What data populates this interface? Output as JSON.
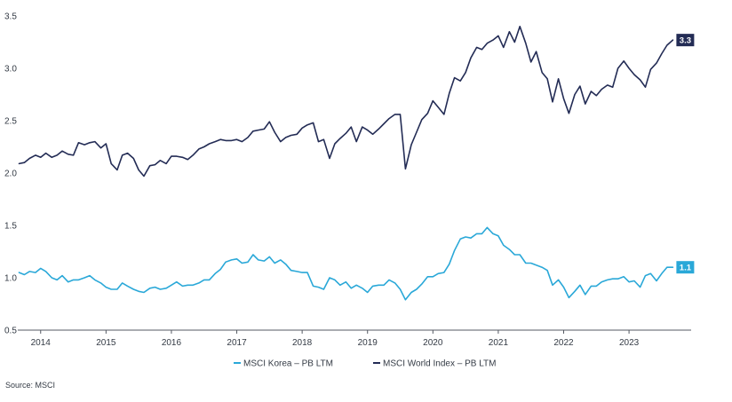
{
  "chart_data": {
    "type": "line",
    "title": "",
    "xlabel": "",
    "ylabel": "",
    "xlim": [
      2013.65,
      2023.95
    ],
    "ylim": [
      0.5,
      3.5
    ],
    "x_ticks": [
      2014,
      2015,
      2016,
      2017,
      2018,
      2019,
      2020,
      2021,
      2022,
      2023
    ],
    "x_tick_labels": [
      "2014",
      "2015",
      "2016",
      "2017",
      "2018",
      "2019",
      "2020",
      "2021",
      "2022",
      "2023"
    ],
    "y_ticks": [
      0.5,
      1.0,
      1.5,
      2.0,
      2.5,
      3.0,
      3.5
    ],
    "y_tick_labels": [
      "0.5",
      "1.0",
      "1.5",
      "2.0",
      "2.5",
      "3.0",
      "3.5"
    ],
    "grid": false,
    "legend_position": "bottom-center",
    "series": [
      {
        "name": "MSCI Korea – PB LTM",
        "color": "#2aa8d8",
        "end_label": "1.1",
        "x": [
          2013.67,
          2013.75,
          2013.83,
          2013.92,
          2014.0,
          2014.08,
          2014.17,
          2014.25,
          2014.33,
          2014.42,
          2014.5,
          2014.58,
          2014.67,
          2014.75,
          2014.83,
          2014.92,
          2015.0,
          2015.08,
          2015.17,
          2015.25,
          2015.33,
          2015.42,
          2015.5,
          2015.58,
          2015.67,
          2015.75,
          2015.83,
          2015.92,
          2016.0,
          2016.08,
          2016.17,
          2016.25,
          2016.33,
          2016.42,
          2016.5,
          2016.58,
          2016.67,
          2016.75,
          2016.83,
          2016.92,
          2017.0,
          2017.08,
          2017.17,
          2017.25,
          2017.33,
          2017.42,
          2017.5,
          2017.58,
          2017.67,
          2017.75,
          2017.83,
          2017.92,
          2018.0,
          2018.08,
          2018.17,
          2018.25,
          2018.33,
          2018.42,
          2018.5,
          2018.58,
          2018.67,
          2018.75,
          2018.83,
          2018.92,
          2019.0,
          2019.08,
          2019.17,
          2019.25,
          2019.33,
          2019.42,
          2019.5,
          2019.58,
          2019.67,
          2019.75,
          2019.83,
          2019.92,
          2020.0,
          2020.08,
          2020.17,
          2020.25,
          2020.33,
          2020.42,
          2020.5,
          2020.58,
          2020.67,
          2020.75,
          2020.83,
          2020.92,
          2021.0,
          2021.08,
          2021.17,
          2021.25,
          2021.33,
          2021.42,
          2021.5,
          2021.58,
          2021.67,
          2021.75,
          2021.83,
          2021.92,
          2022.0,
          2022.08,
          2022.17,
          2022.25,
          2022.33,
          2022.42,
          2022.5,
          2022.58,
          2022.67,
          2022.75,
          2022.83,
          2022.92,
          2023.0,
          2023.08,
          2023.17,
          2023.25,
          2023.33,
          2023.42,
          2023.5,
          2023.58,
          2023.67
        ],
        "values": [
          1.05,
          1.03,
          1.06,
          1.05,
          1.09,
          1.06,
          1.0,
          0.98,
          1.02,
          0.96,
          0.98,
          0.98,
          1.0,
          1.02,
          0.98,
          0.95,
          0.91,
          0.89,
          0.89,
          0.95,
          0.92,
          0.89,
          0.87,
          0.86,
          0.9,
          0.91,
          0.89,
          0.9,
          0.93,
          0.96,
          0.92,
          0.93,
          0.93,
          0.95,
          0.98,
          0.98,
          1.04,
          1.08,
          1.15,
          1.17,
          1.18,
          1.14,
          1.15,
          1.22,
          1.17,
          1.16,
          1.2,
          1.14,
          1.17,
          1.13,
          1.07,
          1.06,
          1.05,
          1.05,
          0.92,
          0.91,
          0.89,
          1.0,
          0.98,
          0.93,
          0.96,
          0.9,
          0.93,
          0.9,
          0.86,
          0.92,
          0.93,
          0.93,
          0.98,
          0.95,
          0.89,
          0.79,
          0.86,
          0.89,
          0.94,
          1.01,
          1.01,
          1.04,
          1.05,
          1.13,
          1.26,
          1.37,
          1.39,
          1.38,
          1.42,
          1.42,
          1.48,
          1.42,
          1.4,
          1.31,
          1.27,
          1.22,
          1.22,
          1.14,
          1.14,
          1.12,
          1.1,
          1.07,
          0.93,
          0.98,
          0.91,
          0.81,
          0.87,
          0.93,
          0.84,
          0.92,
          0.92,
          0.96,
          0.98,
          0.99,
          0.99,
          1.01,
          0.96,
          0.97,
          0.91,
          1.02,
          1.04,
          0.97,
          1.04,
          1.1,
          1.1
        ]
      },
      {
        "name": "MSCI World Index – PB LTM",
        "color": "#232c55",
        "end_label": "3.3",
        "x": [
          2013.67,
          2013.75,
          2013.83,
          2013.92,
          2014.0,
          2014.08,
          2014.17,
          2014.25,
          2014.33,
          2014.42,
          2014.5,
          2014.58,
          2014.67,
          2014.75,
          2014.83,
          2014.92,
          2015.0,
          2015.08,
          2015.17,
          2015.25,
          2015.33,
          2015.42,
          2015.5,
          2015.58,
          2015.67,
          2015.75,
          2015.83,
          2015.92,
          2016.0,
          2016.08,
          2016.17,
          2016.25,
          2016.33,
          2016.42,
          2016.5,
          2016.58,
          2016.67,
          2016.75,
          2016.83,
          2016.92,
          2017.0,
          2017.08,
          2017.17,
          2017.25,
          2017.33,
          2017.42,
          2017.5,
          2017.58,
          2017.67,
          2017.75,
          2017.83,
          2017.92,
          2018.0,
          2018.08,
          2018.17,
          2018.25,
          2018.33,
          2018.42,
          2018.5,
          2018.58,
          2018.67,
          2018.75,
          2018.83,
          2018.92,
          2019.0,
          2019.08,
          2019.17,
          2019.25,
          2019.33,
          2019.42,
          2019.5,
          2019.58,
          2019.67,
          2019.75,
          2019.83,
          2019.92,
          2020.0,
          2020.08,
          2020.17,
          2020.25,
          2020.33,
          2020.42,
          2020.5,
          2020.58,
          2020.67,
          2020.75,
          2020.83,
          2020.92,
          2021.0,
          2021.08,
          2021.17,
          2021.25,
          2021.33,
          2021.42,
          2021.5,
          2021.58,
          2021.67,
          2021.75,
          2021.83,
          2021.92,
          2022.0,
          2022.08,
          2022.17,
          2022.25,
          2022.33,
          2022.42,
          2022.5,
          2022.58,
          2022.67,
          2022.75,
          2022.83,
          2022.92,
          2023.0,
          2023.08,
          2023.17,
          2023.25,
          2023.33,
          2023.42,
          2023.5,
          2023.58,
          2023.67
        ],
        "values": [
          2.09,
          2.1,
          2.14,
          2.17,
          2.15,
          2.19,
          2.15,
          2.17,
          2.21,
          2.18,
          2.17,
          2.29,
          2.27,
          2.29,
          2.3,
          2.24,
          2.28,
          2.09,
          2.03,
          2.17,
          2.19,
          2.14,
          2.03,
          1.97,
          2.07,
          2.08,
          2.12,
          2.09,
          2.16,
          2.16,
          2.15,
          2.13,
          2.17,
          2.23,
          2.25,
          2.28,
          2.3,
          2.32,
          2.31,
          2.31,
          2.32,
          2.3,
          2.34,
          2.4,
          2.41,
          2.42,
          2.49,
          2.39,
          2.3,
          2.34,
          2.36,
          2.37,
          2.43,
          2.46,
          2.48,
          2.3,
          2.32,
          2.14,
          2.28,
          2.33,
          2.38,
          2.44,
          2.3,
          2.44,
          2.41,
          2.37,
          2.42,
          2.47,
          2.52,
          2.56,
          2.56,
          2.04,
          2.27,
          2.39,
          2.51,
          2.57,
          2.69,
          2.63,
          2.56,
          2.76,
          2.91,
          2.88,
          2.96,
          3.1,
          3.2,
          3.18,
          3.24,
          3.27,
          3.31,
          3.2,
          3.35,
          3.25,
          3.4,
          3.24,
          3.06,
          3.16,
          2.96,
          2.9,
          2.68,
          2.9,
          2.71,
          2.57,
          2.75,
          2.83,
          2.66,
          2.78,
          2.74,
          2.8,
          2.84,
          2.82,
          3.0,
          3.07,
          3.0,
          2.94,
          2.89,
          2.82,
          2.99,
          3.05,
          3.14,
          3.22,
          3.27
        ]
      }
    ],
    "source": "Source: MSCI"
  }
}
